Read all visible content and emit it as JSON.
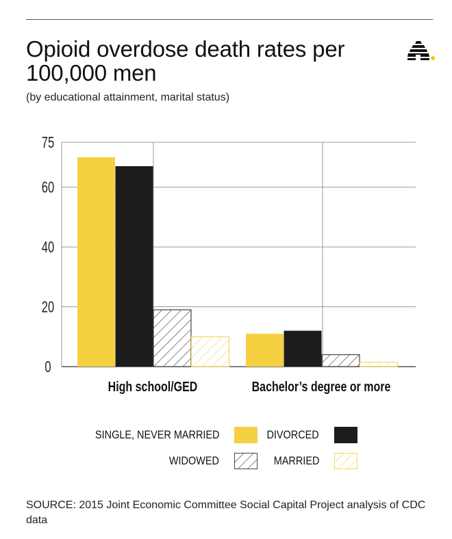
{
  "title": "Opioid overdose death rates per 100,000 men",
  "subtitle": "(by educational attainment, marital status)",
  "logo": {
    "icon": "beehive-logo-icon"
  },
  "colors": {
    "single": "#f5d040",
    "divorced": "#1c1c1c",
    "widowed_stroke": "#444444",
    "married_stroke": "#f2d860",
    "grid": "#999999",
    "axis": "#333333"
  },
  "chart_data": {
    "type": "bar",
    "categories": [
      "High school/GED",
      "Bachelor’s degree or more"
    ],
    "series": [
      {
        "name": "SINGLE, NEVER MARRIED",
        "values": [
          70,
          11
        ]
      },
      {
        "name": "DIVORCED",
        "values": [
          67,
          12
        ]
      },
      {
        "name": "WIDOWED",
        "values": [
          19,
          4
        ]
      },
      {
        "name": "MARRIED",
        "values": [
          10,
          1.5
        ]
      }
    ],
    "yticks": [
      "75",
      "60",
      "40",
      "20",
      "0"
    ],
    "ylim": [
      0,
      75
    ],
    "title": "Opioid overdose death rates per 100,000 men",
    "xlabel": "",
    "ylabel": ""
  },
  "legend": {
    "items": [
      {
        "label": "SINGLE, NEVER MARRIED"
      },
      {
        "label": "DIVORCED"
      },
      {
        "label": "WIDOWED"
      },
      {
        "label": "MARRIED"
      }
    ]
  },
  "source": "SOURCE: 2015 Joint Economic Committee Social Capital Project analysis of CDC data"
}
